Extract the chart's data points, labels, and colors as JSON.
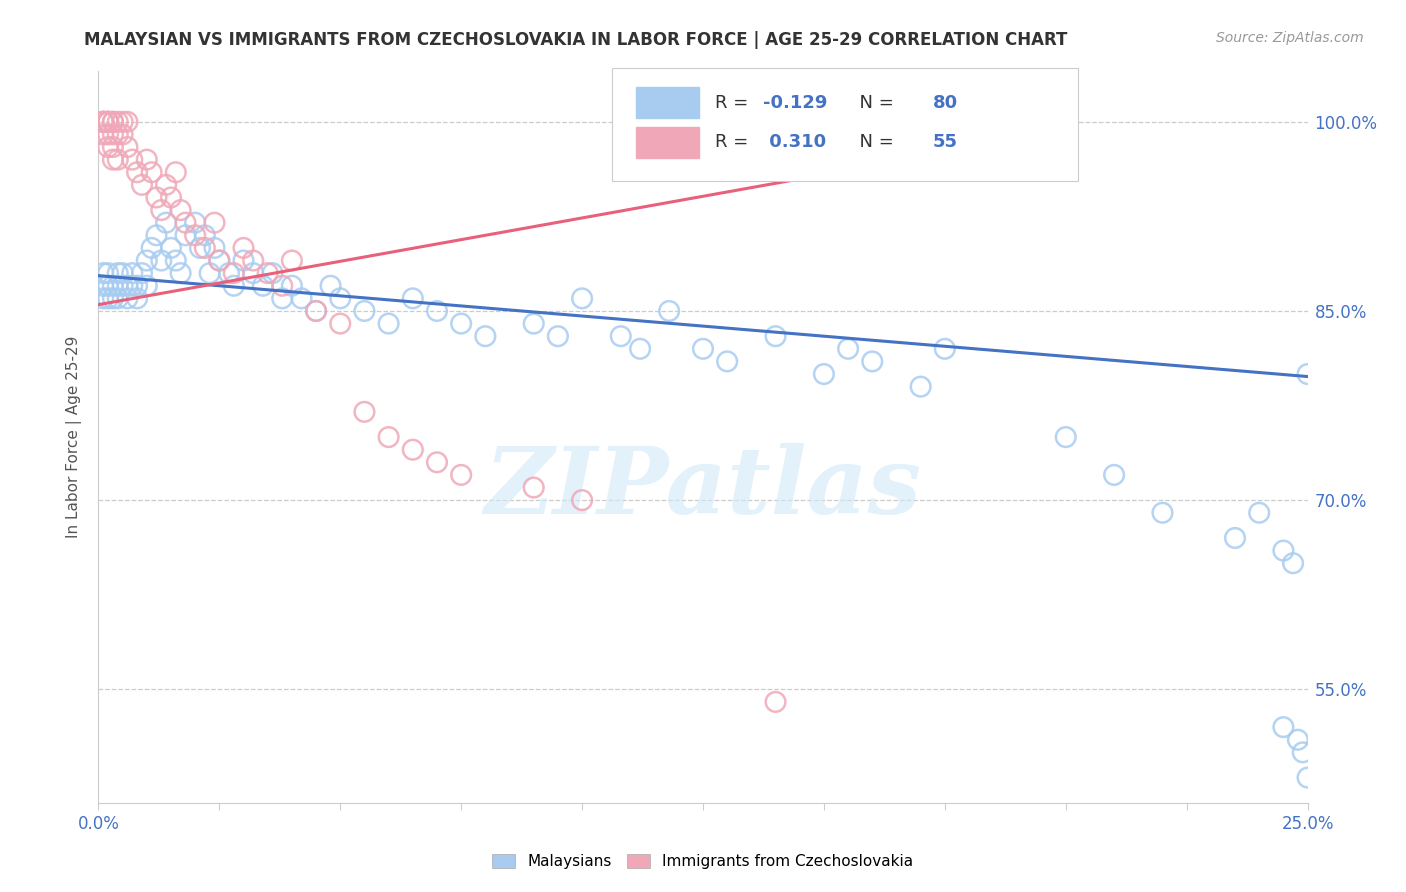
{
  "title": "MALAYSIAN VS IMMIGRANTS FROM CZECHOSLOVAKIA IN LABOR FORCE | AGE 25-29 CORRELATION CHART",
  "source": "Source: ZipAtlas.com",
  "ylabel": "In Labor Force | Age 25-29",
  "ytick_labels": [
    "100.0%",
    "85.0%",
    "70.0%",
    "55.0%"
  ],
  "ytick_values": [
    1.0,
    0.85,
    0.7,
    0.55
  ],
  "xmin": 0.0,
  "xmax": 0.25,
  "ymin": 0.46,
  "ymax": 1.04,
  "blue_R": -0.129,
  "blue_N": 80,
  "pink_R": 0.31,
  "pink_N": 55,
  "blue_color": "#A8CCF0",
  "pink_color": "#F0A8B8",
  "blue_line_color": "#4472C4",
  "pink_line_color": "#E8607A",
  "legend_blue_label": "Malaysians",
  "legend_pink_label": "Immigrants from Czechoslovakia",
  "watermark_text": "ZIPatlas",
  "watermark_color": "#D0E8F8",
  "blue_line_x0": 0.0,
  "blue_line_y0": 0.878,
  "blue_line_x1": 0.25,
  "blue_line_y1": 0.798,
  "pink_line_x0": 0.0,
  "pink_line_y0": 0.855,
  "pink_line_x1": 0.16,
  "pink_line_y1": 0.965,
  "blue_pts_x": [
    0.001,
    0.001,
    0.001,
    0.002,
    0.002,
    0.002,
    0.003,
    0.003,
    0.004,
    0.004,
    0.004,
    0.005,
    0.005,
    0.006,
    0.006,
    0.007,
    0.007,
    0.008,
    0.008,
    0.009,
    0.01,
    0.01,
    0.011,
    0.012,
    0.013,
    0.014,
    0.015,
    0.016,
    0.017,
    0.018,
    0.02,
    0.021,
    0.022,
    0.023,
    0.024,
    0.025,
    0.027,
    0.028,
    0.03,
    0.032,
    0.034,
    0.036,
    0.038,
    0.04,
    0.042,
    0.045,
    0.048,
    0.05,
    0.055,
    0.06,
    0.065,
    0.07,
    0.075,
    0.08,
    0.09,
    0.095,
    0.1,
    0.108,
    0.112,
    0.118,
    0.125,
    0.13,
    0.14,
    0.15,
    0.155,
    0.16,
    0.17,
    0.175,
    0.2,
    0.21,
    0.22,
    0.235,
    0.24,
    0.245,
    0.247,
    0.25,
    0.248,
    0.249,
    0.245,
    0.25
  ],
  "blue_pts_y": [
    0.88,
    0.87,
    0.86,
    0.87,
    0.88,
    0.86,
    0.87,
    0.86,
    0.88,
    0.87,
    0.86,
    0.88,
    0.87,
    0.87,
    0.86,
    0.88,
    0.87,
    0.87,
    0.86,
    0.88,
    0.89,
    0.87,
    0.9,
    0.91,
    0.89,
    0.92,
    0.9,
    0.89,
    0.88,
    0.91,
    0.92,
    0.9,
    0.91,
    0.88,
    0.9,
    0.89,
    0.88,
    0.87,
    0.89,
    0.88,
    0.87,
    0.88,
    0.86,
    0.87,
    0.86,
    0.85,
    0.87,
    0.86,
    0.85,
    0.84,
    0.86,
    0.85,
    0.84,
    0.83,
    0.84,
    0.83,
    0.86,
    0.83,
    0.82,
    0.85,
    0.82,
    0.81,
    0.83,
    0.8,
    0.82,
    0.81,
    0.79,
    0.82,
    0.75,
    0.72,
    0.69,
    0.67,
    0.69,
    0.66,
    0.65,
    0.8,
    0.51,
    0.5,
    0.52,
    0.48
  ],
  "pink_pts_x": [
    0.001,
    0.001,
    0.001,
    0.001,
    0.001,
    0.002,
    0.002,
    0.002,
    0.002,
    0.002,
    0.002,
    0.003,
    0.003,
    0.003,
    0.003,
    0.003,
    0.004,
    0.004,
    0.004,
    0.005,
    0.005,
    0.006,
    0.006,
    0.007,
    0.008,
    0.009,
    0.01,
    0.011,
    0.012,
    0.013,
    0.014,
    0.015,
    0.016,
    0.017,
    0.018,
    0.02,
    0.022,
    0.024,
    0.025,
    0.028,
    0.03,
    0.032,
    0.035,
    0.038,
    0.04,
    0.045,
    0.05,
    0.055,
    0.06,
    0.065,
    0.07,
    0.075,
    0.09,
    0.1,
    0.14
  ],
  "pink_pts_y": [
    1.0,
    1.0,
    1.0,
    1.0,
    0.99,
    1.0,
    1.0,
    1.0,
    1.0,
    0.99,
    0.98,
    1.0,
    1.0,
    0.99,
    0.98,
    0.97,
    1.0,
    0.99,
    0.97,
    1.0,
    0.99,
    1.0,
    0.98,
    0.97,
    0.96,
    0.95,
    0.97,
    0.96,
    0.94,
    0.93,
    0.95,
    0.94,
    0.96,
    0.93,
    0.92,
    0.91,
    0.9,
    0.92,
    0.89,
    0.88,
    0.9,
    0.89,
    0.88,
    0.87,
    0.89,
    0.85,
    0.84,
    0.77,
    0.75,
    0.74,
    0.73,
    0.72,
    0.71,
    0.7,
    0.54
  ]
}
